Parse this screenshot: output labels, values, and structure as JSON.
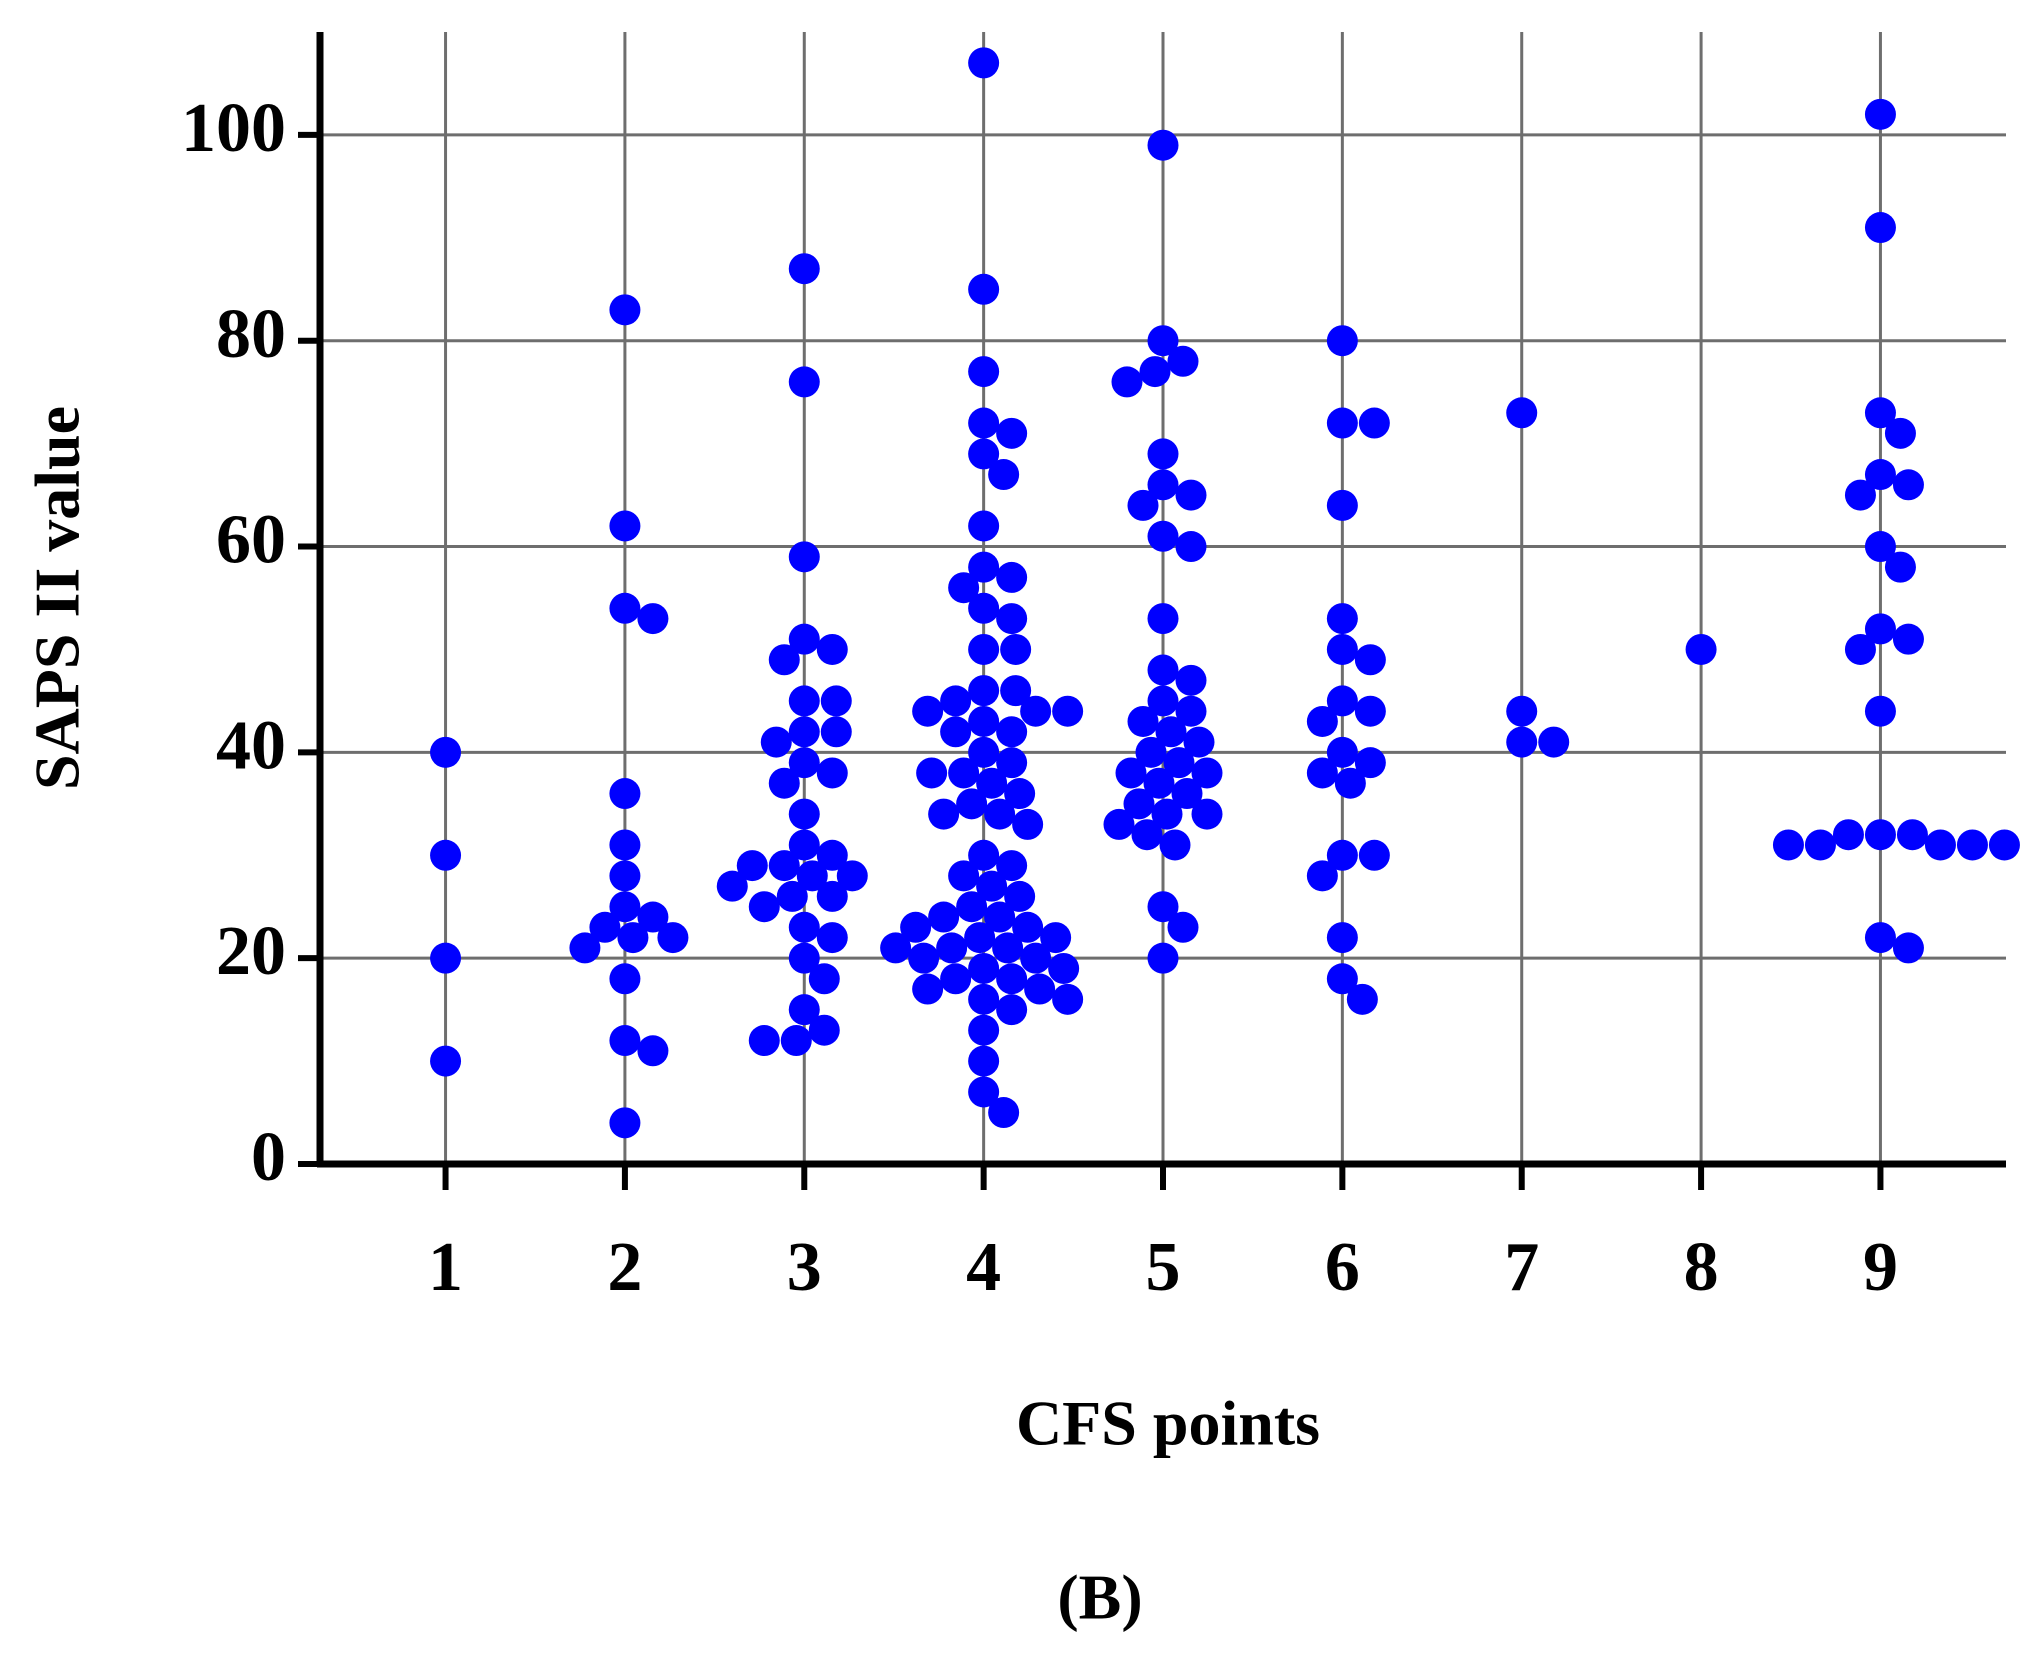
{
  "chart_data": {
    "type": "strip",
    "x_label": "CFS points",
    "y_label": "SAPS II value",
    "caption": "(B)",
    "color": "#0000ff",
    "grid": true,
    "xlim": [
      0.3,
      9.7
    ],
    "ylim": [
      0,
      110
    ],
    "xticks": [
      1,
      2,
      3,
      4,
      5,
      6,
      7,
      8,
      9
    ],
    "yticks": [
      0,
      20,
      40,
      60,
      80,
      100
    ],
    "groups": [
      {
        "x": 1,
        "values": [
          40,
          30,
          20,
          10
        ]
      },
      {
        "x": 2,
        "values": [
          83,
          62,
          54,
          53,
          36,
          31,
          28,
          25,
          24,
          23,
          22,
          22,
          21,
          18,
          12,
          11,
          4
        ]
      },
      {
        "x": 3,
        "values": [
          87,
          76,
          59,
          51,
          50,
          49,
          45,
          45,
          42,
          42,
          41,
          39,
          38,
          37,
          34,
          31,
          30,
          29,
          29,
          28,
          28,
          27,
          26,
          26,
          25,
          23,
          22,
          20,
          18,
          15,
          13,
          12,
          12
        ]
      },
      {
        "x": 4,
        "values": [
          107,
          85,
          77,
          72,
          71,
          69,
          67,
          62,
          58,
          57,
          56,
          54,
          53,
          50,
          50,
          46,
          46,
          45,
          44,
          44,
          44,
          43,
          42,
          42,
          40,
          39,
          38,
          38,
          37,
          36,
          35,
          34,
          34,
          33,
          30,
          29,
          28,
          27,
          26,
          25,
          24,
          24,
          23,
          23,
          22,
          22,
          21,
          21,
          21,
          20,
          20,
          19,
          19,
          18,
          18,
          17,
          17,
          16,
          16,
          15,
          13,
          10,
          7,
          5
        ]
      },
      {
        "x": 5,
        "values": [
          99,
          80,
          78,
          77,
          76,
          69,
          66,
          65,
          64,
          61,
          60,
          53,
          48,
          47,
          45,
          44,
          43,
          42,
          41,
          40,
          39,
          38,
          38,
          37,
          36,
          35,
          34,
          34,
          33,
          32,
          31,
          25,
          23,
          20
        ]
      },
      {
        "x": 6,
        "values": [
          80,
          72,
          72,
          64,
          53,
          50,
          49,
          45,
          44,
          43,
          40,
          39,
          38,
          37,
          30,
          30,
          28,
          22,
          18,
          16
        ]
      },
      {
        "x": 7,
        "values": [
          73,
          44,
          41,
          41
        ]
      },
      {
        "x": 8,
        "values": [
          50
        ]
      },
      {
        "x": 9,
        "values": [
          102,
          91,
          73,
          71,
          67,
          66,
          65,
          60,
          58,
          52,
          51,
          50,
          44,
          32,
          32,
          32,
          31,
          31,
          31,
          31,
          31,
          22,
          21
        ]
      }
    ]
  }
}
